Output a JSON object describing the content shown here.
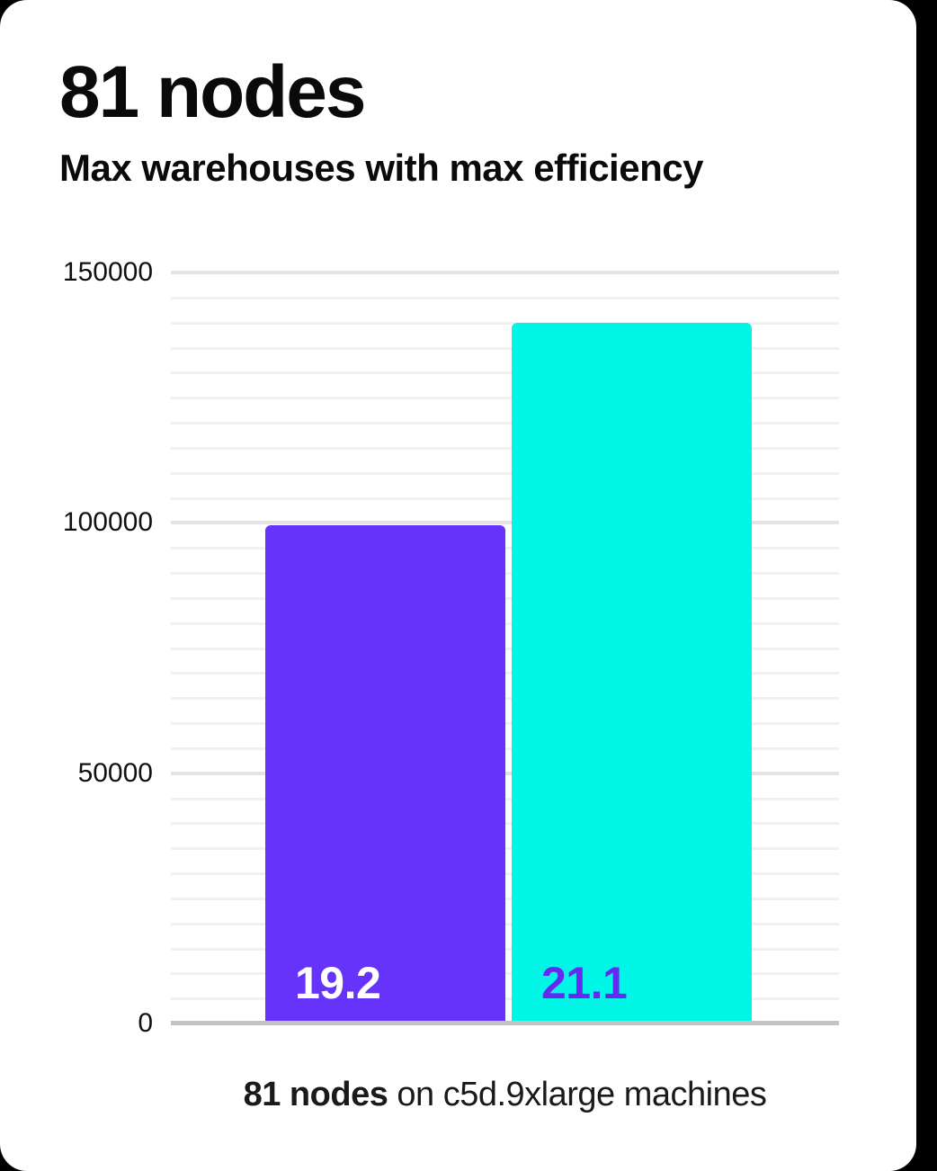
{
  "header": {
    "title": "81 nodes",
    "subtitle": "Max warehouses with max efficiency"
  },
  "chart_data": {
    "type": "bar",
    "title": "81 nodes",
    "subtitle": "Max warehouses with max efficiency",
    "categories": [
      "19.2",
      "21.1"
    ],
    "values": [
      99500,
      140000
    ],
    "bar_colors": [
      "#6633fa",
      "#00f6e6"
    ],
    "bar_label_colors": [
      "#ffffff",
      "#6629f0"
    ],
    "xlabel": "",
    "ylabel": "",
    "ylim": [
      0,
      150000
    ],
    "yticks": [
      0,
      50000,
      100000,
      150000
    ],
    "minor_grid_step": 5000,
    "major_grid_step": 50000,
    "grid": true,
    "legend": false,
    "caption_bold": "81 nodes",
    "caption_rest": " on c5d.9xlarge machines"
  },
  "colors": {
    "background": "#000000",
    "card": "#ffffff",
    "bar_purple": "#6633fa",
    "bar_cyan": "#00f6e6",
    "grid_minor": "#f1f1f1",
    "grid_major": "#e3e3e3",
    "axis_line": "#c3c3c3",
    "text": "#0a0a0a"
  }
}
